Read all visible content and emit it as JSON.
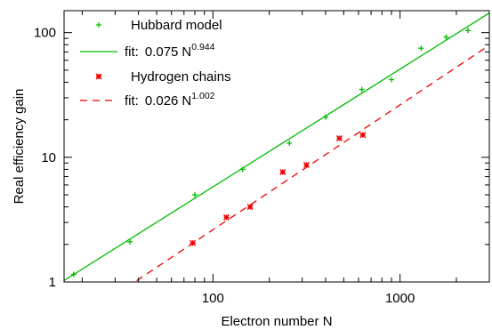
{
  "chart_data": {
    "type": "scatter",
    "xscale": "log",
    "yscale": "log",
    "xlim": [
      16,
      3000
    ],
    "ylim": [
      1,
      150
    ],
    "xlabel": "Electron number N",
    "ylabel": "Real efficiency gain",
    "xticks": [
      100,
      1000
    ],
    "xtick_labels": [
      "100",
      "1000"
    ],
    "yticks": [
      1,
      10,
      100
    ],
    "ytick_labels": [
      "1",
      "10",
      "100"
    ],
    "grid": false,
    "legend_position": "top-left",
    "series": [
      {
        "name": "Hubbard model",
        "kind": "points",
        "marker": "plus",
        "color": "#00bb00",
        "x": [
          18,
          36,
          80,
          144,
          256,
          400,
          625,
          900,
          1296,
          1764,
          2304
        ],
        "y": [
          1.15,
          2.1,
          5.0,
          8.0,
          13.0,
          21.0,
          35.0,
          42.0,
          75.0,
          92.0,
          104.0
        ]
      },
      {
        "name": "fit:",
        "kind": "line",
        "dash": "solid",
        "color": "#00bb00",
        "coef": 0.075,
        "exp": 0.944,
        "coef_label": "0.075",
        "base_label": "N",
        "exp_label": "0.944"
      },
      {
        "name": "Hydrogen chains",
        "kind": "points",
        "marker": "star",
        "color": "#ee0000",
        "x": [
          78,
          118,
          158,
          236,
          316,
          474,
          632
        ],
        "y": [
          2.05,
          3.3,
          4.0,
          7.6,
          8.7,
          14.2,
          15.1
        ]
      },
      {
        "name": "fit:",
        "kind": "line",
        "dash": "dashed",
        "color": "#ee0000",
        "coef": 0.026,
        "exp": 1.002,
        "coef_label": "0.026",
        "base_label": "N",
        "exp_label": "1.002"
      }
    ]
  }
}
